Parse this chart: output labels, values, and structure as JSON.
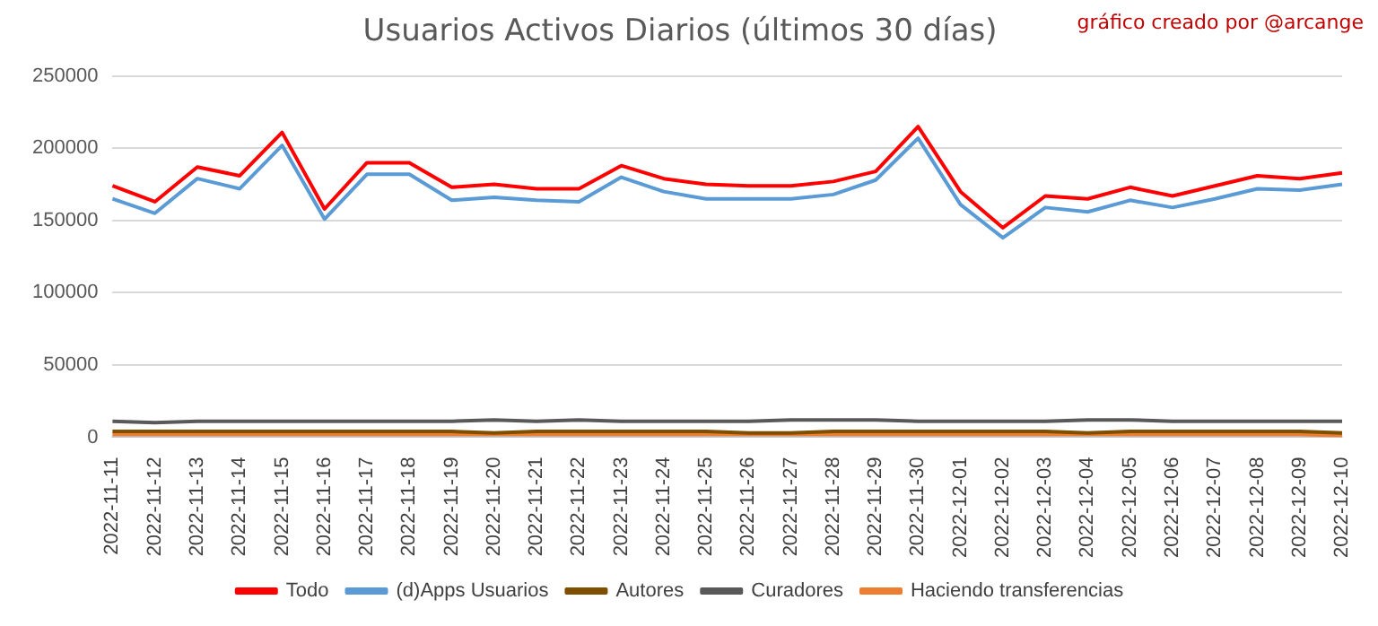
{
  "chart_data": {
    "type": "line",
    "title": "Usuarios Activos Diarios (últimos 30 días)",
    "annotations": [
      "gráfico creado por @arcange"
    ],
    "categories": [
      "2022-11-11",
      "2022-11-12",
      "2022-11-13",
      "2022-11-14",
      "2022-11-15",
      "2022-11-16",
      "2022-11-17",
      "2022-11-18",
      "2022-11-19",
      "2022-11-20",
      "2022-11-21",
      "2022-11-22",
      "2022-11-23",
      "2022-11-24",
      "2022-11-25",
      "2022-11-26",
      "2022-11-27",
      "2022-11-28",
      "2022-11-29",
      "2022-11-30",
      "2022-12-01",
      "2022-12-02",
      "2022-12-03",
      "2022-12-04",
      "2022-12-05",
      "2022-12-06",
      "2022-12-07",
      "2022-12-08",
      "2022-12-09",
      "2022-12-10"
    ],
    "series": [
      {
        "name": "Todo",
        "color": "#ff0000",
        "values": [
          174000,
          163000,
          187000,
          181000,
          211000,
          158000,
          190000,
          190000,
          173000,
          175000,
          172000,
          172000,
          188000,
          179000,
          175000,
          174000,
          174000,
          177000,
          184000,
          215000,
          170000,
          145000,
          167000,
          165000,
          173000,
          167000,
          174000,
          181000,
          179000,
          183000
        ]
      },
      {
        "name": "(d)Apps Usuarios",
        "color": "#5b9bd5",
        "values": [
          165000,
          155000,
          179000,
          172000,
          202000,
          151000,
          182000,
          182000,
          164000,
          166000,
          164000,
          163000,
          180000,
          170000,
          165000,
          165000,
          165000,
          168000,
          178000,
          207000,
          161000,
          138000,
          159000,
          156000,
          164000,
          159000,
          165000,
          172000,
          171000,
          175000
        ]
      },
      {
        "name": "Autores",
        "color": "#7f4f00",
        "values": [
          4000,
          4000,
          4000,
          4000,
          4000,
          4000,
          4000,
          4000,
          4000,
          3000,
          4000,
          4000,
          4000,
          4000,
          4000,
          3000,
          3000,
          4000,
          4000,
          4000,
          4000,
          4000,
          4000,
          3000,
          4000,
          4000,
          4000,
          4000,
          4000,
          3000
        ]
      },
      {
        "name": "Curadores",
        "color": "#595959",
        "values": [
          11000,
          10000,
          11000,
          11000,
          11000,
          11000,
          11000,
          11000,
          11000,
          12000,
          11000,
          12000,
          11000,
          11000,
          11000,
          11000,
          12000,
          12000,
          12000,
          11000,
          11000,
          11000,
          11000,
          12000,
          12000,
          11000,
          11000,
          11000,
          11000,
          11000
        ]
      },
      {
        "name": "Haciendo transferencias",
        "color": "#ed7d31",
        "values": [
          2000,
          2000,
          2000,
          2000,
          2000,
          2000,
          2000,
          2000,
          2000,
          2000,
          2000,
          2000,
          2000,
          2000,
          2000,
          2000,
          2000,
          2000,
          2000,
          2000,
          2000,
          2000,
          2000,
          2000,
          2000,
          2000,
          2000,
          2000,
          2000,
          1000
        ]
      }
    ],
    "ylim": [
      0,
      250000
    ],
    "yticks": [
      0,
      50000,
      100000,
      150000,
      200000,
      250000
    ],
    "grid": "y",
    "legend": "bottom",
    "marker": "none",
    "line_style": "solid"
  }
}
